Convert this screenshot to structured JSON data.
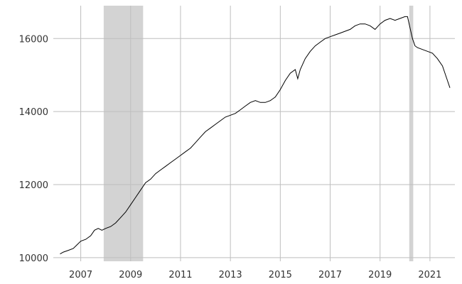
{
  "chart_data": {
    "type": "line",
    "title": "",
    "xlabel": "",
    "ylabel": "",
    "xlim": [
      2005.9,
      2022.0
    ],
    "ylim": [
      9900,
      16900
    ],
    "grid": true,
    "line_color": "#000000",
    "shade_color": "#d3d3d3",
    "grid_color": "#bebebe",
    "x_ticks": [
      {
        "value": 2007,
        "label": "2007"
      },
      {
        "value": 2009,
        "label": "2009"
      },
      {
        "value": 2011,
        "label": "2011"
      },
      {
        "value": 2013,
        "label": "2013"
      },
      {
        "value": 2015,
        "label": "2015"
      },
      {
        "value": 2017,
        "label": "2017"
      },
      {
        "value": 2019,
        "label": "2019"
      },
      {
        "value": 2021,
        "label": "2021"
      }
    ],
    "y_ticks": [
      {
        "value": 10000,
        "label": "10000"
      },
      {
        "value": 12000,
        "label": "12000"
      },
      {
        "value": 14000,
        "label": "14000"
      },
      {
        "value": 16000,
        "label": "16000"
      }
    ],
    "shaded_regions": [
      {
        "start": 2007.92,
        "end": 2009.5
      },
      {
        "start": 2020.17,
        "end": 2020.33
      }
    ],
    "series": [
      {
        "x": [
          2006.17,
          2006.3,
          2006.5,
          2006.7,
          2006.85,
          2007.0,
          2007.2,
          2007.4,
          2007.55,
          2007.7,
          2007.85,
          2008.0,
          2008.2,
          2008.4,
          2008.6,
          2008.8,
          2009.0,
          2009.2,
          2009.4,
          2009.6,
          2009.8,
          2010.0,
          2010.2,
          2010.4,
          2010.6,
          2010.8,
          2011.0,
          2011.2,
          2011.4,
          2011.6,
          2011.8,
          2012.0,
          2012.2,
          2012.4,
          2012.6,
          2012.8,
          2013.0,
          2013.2,
          2013.4,
          2013.6,
          2013.8,
          2014.0,
          2014.2,
          2014.4,
          2014.6,
          2014.8,
          2015.0,
          2015.2,
          2015.4,
          2015.6,
          2015.7,
          2015.8,
          2016.0,
          2016.2,
          2016.4,
          2016.6,
          2016.8,
          2017.0,
          2017.2,
          2017.4,
          2017.6,
          2017.8,
          2018.0,
          2018.2,
          2018.4,
          2018.6,
          2018.8,
          2019.0,
          2019.2,
          2019.4,
          2019.6,
          2019.8,
          2020.0,
          2020.1,
          2020.2,
          2020.3,
          2020.4,
          2020.5,
          2020.7,
          2020.9,
          2021.1,
          2021.3,
          2021.5,
          2021.6,
          2021.7,
          2021.8
        ],
        "y": [
          10100,
          10150,
          10200,
          10250,
          10350,
          10450,
          10500,
          10600,
          10750,
          10800,
          10750,
          10800,
          10850,
          10950,
          11100,
          11250,
          11450,
          11650,
          11850,
          12050,
          12150,
          12300,
          12400,
          12500,
          12600,
          12700,
          12800,
          12900,
          13000,
          13150,
          13300,
          13450,
          13550,
          13650,
          13750,
          13850,
          13900,
          13950,
          14050,
          14150,
          14250,
          14300,
          14250,
          14250,
          14300,
          14400,
          14600,
          14850,
          15050,
          15150,
          14900,
          15150,
          15450,
          15650,
          15800,
          15900,
          16000,
          16050,
          16100,
          16150,
          16200,
          16250,
          16350,
          16400,
          16400,
          16350,
          16250,
          16400,
          16500,
          16550,
          16500,
          16550,
          16600,
          16600,
          16300,
          16000,
          15800,
          15750,
          15700,
          15650,
          15600,
          15450,
          15250,
          15050,
          14850,
          14650
        ]
      }
    ]
  }
}
